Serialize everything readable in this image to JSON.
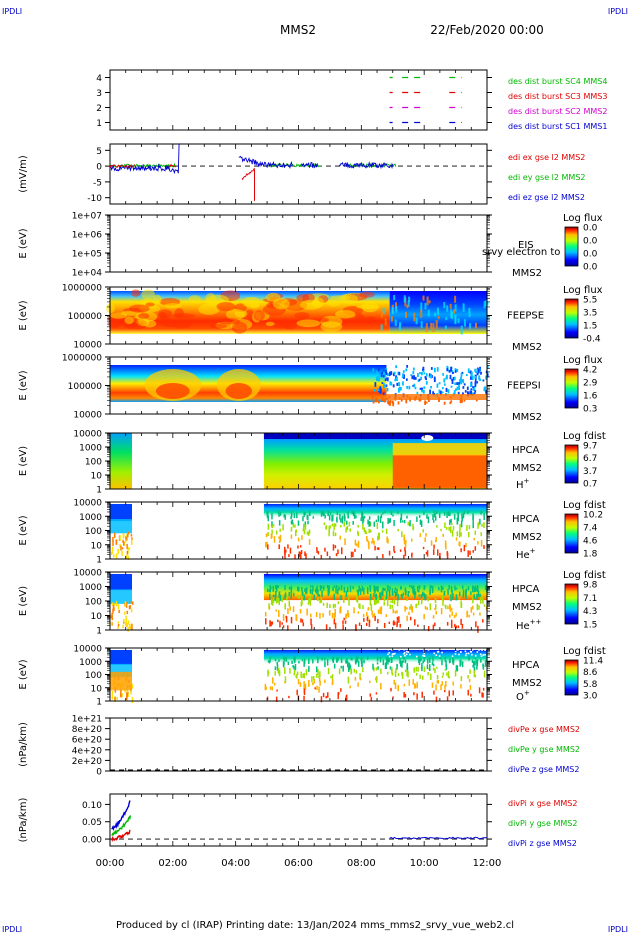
{
  "header": {
    "corner_left": "IPDLI",
    "corner_right": "IPDLI",
    "title": "MMS2",
    "date": "22/Feb/2020 00:00"
  },
  "footer": {
    "text": "Produced by cl (IRAP)   Printing date: 13/Jan/2024   mms_mms2_srvy_vue_web2.cl",
    "corner_left": "IPDLI",
    "corner_right": "IPDLI"
  },
  "colors": {
    "red": "#e00000",
    "green": "#00b800",
    "blue": "#0000d0",
    "magenta": "#d000d0"
  },
  "chart_data": [
    {
      "type": "line",
      "id": "burst",
      "yticks": [
        "4",
        "3",
        "2",
        "1"
      ],
      "ylim": [
        0.5,
        4.5
      ],
      "series": [
        {
          "name": "des dist burst SC1 MMS1",
          "color": "#0000d0",
          "y": 1,
          "segments": [
            [
              8.9,
              9.0
            ],
            [
              9.3,
              10.0
            ],
            [
              10.8,
              11.2
            ]
          ]
        },
        {
          "name": "des dist burst SC2 MMS2",
          "color": "#d000d0",
          "y": 2,
          "segments": [
            [
              8.9,
              9.0
            ],
            [
              9.3,
              10.0
            ],
            [
              10.8,
              11.2
            ]
          ]
        },
        {
          "name": "des dist burst SC3 MMS3",
          "color": "#e00000",
          "y": 3,
          "segments": [
            [
              8.9,
              9.0
            ],
            [
              9.3,
              10.0
            ],
            [
              10.8,
              11.2
            ]
          ]
        },
        {
          "name": "des dist burst SC4 MMS4",
          "color": "#00b800",
          "y": 4,
          "segments": [
            [
              8.9,
              9.0
            ],
            [
              9.3,
              10.0
            ],
            [
              10.8,
              11.2
            ]
          ]
        }
      ]
    },
    {
      "type": "line",
      "id": "edi",
      "ylabel": "(mV/m)",
      "yticks": [
        "5",
        "0",
        "-5",
        "-10"
      ],
      "ylim": [
        -12,
        7
      ],
      "series": [
        {
          "name": "edi ex gse l2 MMS2",
          "color": "#e00000"
        },
        {
          "name": "edi ey gse l2 MMS2",
          "color": "#00b800"
        },
        {
          "name": "edi ez gse l2 MMS2",
          "color": "#0000d0"
        }
      ]
    },
    {
      "type": "heatmap",
      "id": "eis",
      "ylabel": "E (eV)",
      "yticks": [
        "1e+07",
        "1e+06",
        "1e+05",
        "1e+04"
      ],
      "instrument": "EIS",
      "instrument_note": "srvy electron to",
      "spacecraft": "MMS2",
      "cbar_title": "Log flux",
      "cbar_ticks": [
        "0.0",
        "0.0",
        "0.0",
        "0.0"
      ]
    },
    {
      "type": "heatmap",
      "id": "feepse",
      "ylabel": "E (eV)",
      "yticks": [
        "1000000",
        "100000",
        "10000"
      ],
      "instrument": "FEEPSE",
      "spacecraft": "MMS2",
      "cbar_title": "Log flux",
      "cbar_ticks": [
        "5.5",
        "3.5",
        "1.5",
        "-0.4"
      ]
    },
    {
      "type": "heatmap",
      "id": "feepsi",
      "ylabel": "E (eV)",
      "yticks": [
        "1000000",
        "100000",
        "10000"
      ],
      "instrument": "FEEPSI",
      "spacecraft": "MMS2",
      "cbar_title": "Log flux",
      "cbar_ticks": [
        "4.2",
        "2.9",
        "1.6",
        "0.3"
      ]
    },
    {
      "type": "heatmap",
      "id": "hpca_h",
      "ylabel": "E (eV)",
      "yticks": [
        "10000",
        "1000",
        "100",
        "10",
        "1"
      ],
      "instrument": "HPCA",
      "spacecraft": "MMS2",
      "species": "H",
      "species_sup": "+",
      "cbar_title": "Log fdist",
      "cbar_ticks": [
        "9.7",
        "6.7",
        "3.7",
        "0.7"
      ]
    },
    {
      "type": "heatmap",
      "id": "hpca_he",
      "ylabel": "E (eV)",
      "yticks": [
        "10000",
        "1000",
        "100",
        "10",
        "1"
      ],
      "instrument": "HPCA",
      "spacecraft": "MMS2",
      "species": "He",
      "species_sup": "+",
      "cbar_title": "Log fdist",
      "cbar_ticks": [
        "10.2",
        "7.4",
        "4.6",
        "1.8"
      ]
    },
    {
      "type": "heatmap",
      "id": "hpca_hepp",
      "ylabel": "E (eV)",
      "yticks": [
        "10000",
        "1000",
        "100",
        "10",
        "1"
      ],
      "instrument": "HPCA",
      "spacecraft": "MMS2",
      "species": "He",
      "species_sup": "++",
      "cbar_title": "Log fdist",
      "cbar_ticks": [
        "9.8",
        "7.1",
        "4.3",
        "1.5"
      ]
    },
    {
      "type": "heatmap",
      "id": "hpca_o",
      "ylabel": "E (eV)",
      "yticks": [
        "10000",
        "1000",
        "100",
        "10",
        "1"
      ],
      "instrument": "HPCA",
      "spacecraft": "MMS2",
      "species": "O",
      "species_sup": "+",
      "cbar_title": "Log fdist",
      "cbar_ticks": [
        "11.4",
        "8.6",
        "5.8",
        "3.0"
      ]
    },
    {
      "type": "line",
      "id": "divpe",
      "ylabel": "(nPa/km)",
      "yticks": [
        "1e+21",
        "8e+20",
        "6e+20",
        "4e+20",
        "2e+20",
        "0"
      ],
      "series": [
        {
          "name": "divPe x gse MMS2",
          "color": "#e00000"
        },
        {
          "name": "divPe y gse MMS2",
          "color": "#00b800"
        },
        {
          "name": "divPe z gse MMS2",
          "color": "#0000d0"
        }
      ]
    },
    {
      "type": "line",
      "id": "divpi",
      "ylabel": "(nPa/km)",
      "yticks": [
        "0.10",
        "0.05",
        "0.00"
      ],
      "ylim": [
        -0.02,
        0.13
      ],
      "series": [
        {
          "name": "divPi x gse MMS2",
          "color": "#e00000"
        },
        {
          "name": "divPi y gse MMS2",
          "color": "#00b800"
        },
        {
          "name": "divPi z gse MMS2",
          "color": "#0000d0"
        }
      ]
    }
  ],
  "time_axis": {
    "ticks": [
      "00:00",
      "02:00",
      "04:00",
      "06:00",
      "08:00",
      "10:00",
      "12:00"
    ],
    "range_hours": [
      0,
      12
    ]
  }
}
